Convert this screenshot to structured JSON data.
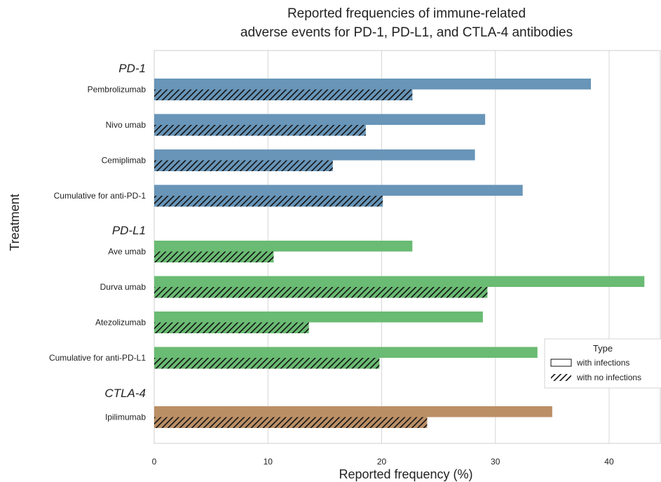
{
  "chart_data": {
    "type": "bar",
    "orientation": "horizontal",
    "title_line1": "Reported frequencies of immune-related",
    "title_line2": "adverse events for PD-1, PD-L1, and CTLA-4 antibodies",
    "xlabel": "Reported frequency (%)",
    "ylabel": "Treatment",
    "xlim": [
      0,
      44.5
    ],
    "xticks": [
      0,
      10,
      20,
      30,
      40
    ],
    "grid": true,
    "legend": {
      "title": "Type",
      "position": "lower-right",
      "entries": [
        {
          "label": "with infections",
          "style": "solid"
        },
        {
          "label": "with no infections",
          "style": "hatched"
        }
      ]
    },
    "groups": [
      {
        "label": "PD-1",
        "color": "#6895b8",
        "categories": [
          {
            "label": "Pembrolizumab",
            "with_infections": 38.4,
            "with_no_infections": 22.7
          },
          {
            "label": "Nivo umab",
            "with_infections": 29.1,
            "with_no_infections": 18.6
          },
          {
            "label": "Cemiplimab",
            "with_infections": 28.2,
            "with_no_infections": 15.7
          },
          {
            "label": "Cumulative for anti-PD-1",
            "with_infections": 32.4,
            "with_no_infections": 20.1
          }
        ]
      },
      {
        "label": "PD-L1",
        "color": "#6abb73",
        "categories": [
          {
            "label": "Ave umab",
            "with_infections": 22.7,
            "with_no_infections": 10.5
          },
          {
            "label": "Durva umab",
            "with_infections": 43.1,
            "with_no_infections": 29.3
          },
          {
            "label": "Atezolizumab",
            "with_infections": 28.9,
            "with_no_infections": 13.6
          },
          {
            "label": "Cumulative for anti-PD-L1",
            "with_infections": 33.7,
            "with_no_infections": 19.8
          }
        ]
      },
      {
        "label": "CTLA-4",
        "color": "#bb8f66",
        "categories": [
          {
            "label": "Ipilimumab",
            "with_infections": 35.0,
            "with_no_infections": 24.0
          }
        ]
      }
    ]
  }
}
